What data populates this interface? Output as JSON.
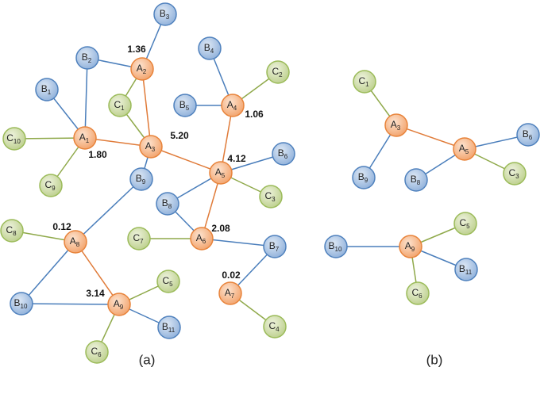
{
  "panels": [
    {
      "caption": "(a)",
      "nodes": [
        {
          "letter": "B",
          "sub": "3"
        },
        {
          "letter": "B",
          "sub": "2"
        },
        {
          "letter": "A",
          "sub": "2",
          "weight": "1.36"
        },
        {
          "letter": "B",
          "sub": "4"
        },
        {
          "letter": "C",
          "sub": "2"
        },
        {
          "letter": "B",
          "sub": "1"
        },
        {
          "letter": "C",
          "sub": "1"
        },
        {
          "letter": "B",
          "sub": "5"
        },
        {
          "letter": "A",
          "sub": "4",
          "weight": "1.06"
        },
        {
          "letter": "C",
          "sub": "10"
        },
        {
          "letter": "A",
          "sub": "1",
          "weight": "1.80"
        },
        {
          "letter": "A",
          "sub": "3",
          "weight": "5.20"
        },
        {
          "letter": "B",
          "sub": "6"
        },
        {
          "letter": "C",
          "sub": "9"
        },
        {
          "letter": "A",
          "sub": "5",
          "weight": "4.12"
        },
        {
          "letter": "B",
          "sub": "8"
        },
        {
          "letter": "C",
          "sub": "3"
        },
        {
          "letter": "B",
          "sub": "9"
        },
        {
          "letter": "C",
          "sub": "8"
        },
        {
          "letter": "A",
          "sub": "8",
          "weight": "0.12"
        },
        {
          "letter": "C",
          "sub": "7"
        },
        {
          "letter": "A",
          "sub": "6",
          "weight": "2.08"
        },
        {
          "letter": "B",
          "sub": "7"
        },
        {
          "letter": "C",
          "sub": "5"
        },
        {
          "letter": "B",
          "sub": "10"
        },
        {
          "letter": "A",
          "sub": "9",
          "weight": "3.14"
        },
        {
          "letter": "A",
          "sub": "7",
          "weight": "0.02"
        },
        {
          "letter": "B",
          "sub": "11"
        },
        {
          "letter": "C",
          "sub": "6"
        },
        {
          "letter": "C",
          "sub": "4"
        }
      ]
    },
    {
      "caption": "(b)",
      "nodes": [
        {
          "letter": "C",
          "sub": "1"
        },
        {
          "letter": "A",
          "sub": "3"
        },
        {
          "letter": "B",
          "sub": "6"
        },
        {
          "letter": "A",
          "sub": "5"
        },
        {
          "letter": "B",
          "sub": "9"
        },
        {
          "letter": "B",
          "sub": "8"
        },
        {
          "letter": "C",
          "sub": "3"
        },
        {
          "letter": "C",
          "sub": "5"
        },
        {
          "letter": "B",
          "sub": "10"
        },
        {
          "letter": "A",
          "sub": "9"
        },
        {
          "letter": "B",
          "sub": "11"
        },
        {
          "letter": "C",
          "sub": "6"
        }
      ]
    }
  ]
}
